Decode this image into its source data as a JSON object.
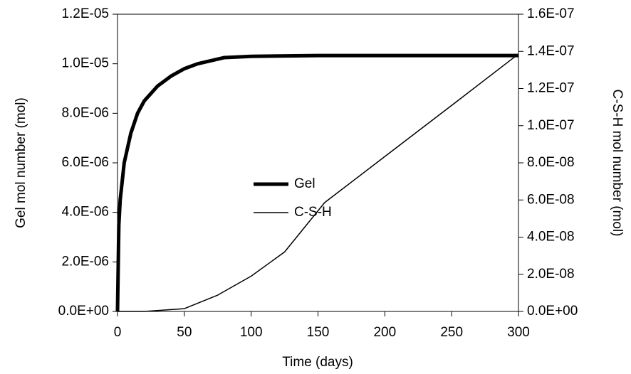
{
  "chart_data": {
    "type": "line",
    "xlabel": "Time (days)",
    "ylabel": "Gel mol number (mol)",
    "y2label": "C-S-H mol number (mol)",
    "xlim": [
      0,
      300
    ],
    "xticks": [
      0,
      50,
      100,
      150,
      200,
      250,
      300
    ],
    "ylim": [
      0,
      1.2e-05
    ],
    "yticks": [
      {
        "value": 0,
        "label": "0.0E+00"
      },
      {
        "value": 2e-06,
        "label": "2.0E-06"
      },
      {
        "value": 4e-06,
        "label": "4.0E-06"
      },
      {
        "value": 6e-06,
        "label": "6.0E-06"
      },
      {
        "value": 8e-06,
        "label": "8.0E-06"
      },
      {
        "value": 1e-05,
        "label": "1.0E-05"
      },
      {
        "value": 1.2e-05,
        "label": "1.2E-05"
      }
    ],
    "y2lim": [
      0,
      1.6e-07
    ],
    "y2ticks": [
      {
        "value": 0,
        "label": "0.0E+00"
      },
      {
        "value": 2e-08,
        "label": "2.0E-08"
      },
      {
        "value": 4e-08,
        "label": "4.0E-08"
      },
      {
        "value": 6e-08,
        "label": "6.0E-08"
      },
      {
        "value": 8e-08,
        "label": "8.0E-08"
      },
      {
        "value": 1e-07,
        "label": "1.0E-07"
      },
      {
        "value": 1.2e-07,
        "label": "1.2E-07"
      },
      {
        "value": 1.4e-07,
        "label": "1.4E-07"
      },
      {
        "value": 1.6e-07,
        "label": "1.6E-07"
      }
    ],
    "series": [
      {
        "name": "Gel",
        "color": "#000000",
        "width": 5,
        "x": [
          0,
          1,
          2,
          5,
          10,
          15,
          20,
          30,
          40,
          50,
          60,
          80,
          100,
          150,
          300
        ],
        "values": [
          0,
          3.5e-06,
          4.5e-06,
          6e-06,
          7.2e-06,
          8e-06,
          8.5e-06,
          9.1e-06,
          9.5e-06,
          9.8e-06,
          1e-05,
          1.025e-05,
          1.03e-05,
          1.033e-05,
          1.033e-05
        ]
      },
      {
        "name": "C-S-H",
        "color": "#000000",
        "width": 1.5,
        "axis": "y2",
        "x": [
          0,
          20,
          50,
          75,
          100,
          125,
          155,
          200,
          250,
          300
        ],
        "values": [
          0,
          0,
          1.5e-09,
          8.8e-09,
          1.9e-08,
          3.2e-08,
          5.86e-08,
          8.34e-08,
          1.109e-07,
          1.386e-07
        ]
      }
    ]
  }
}
